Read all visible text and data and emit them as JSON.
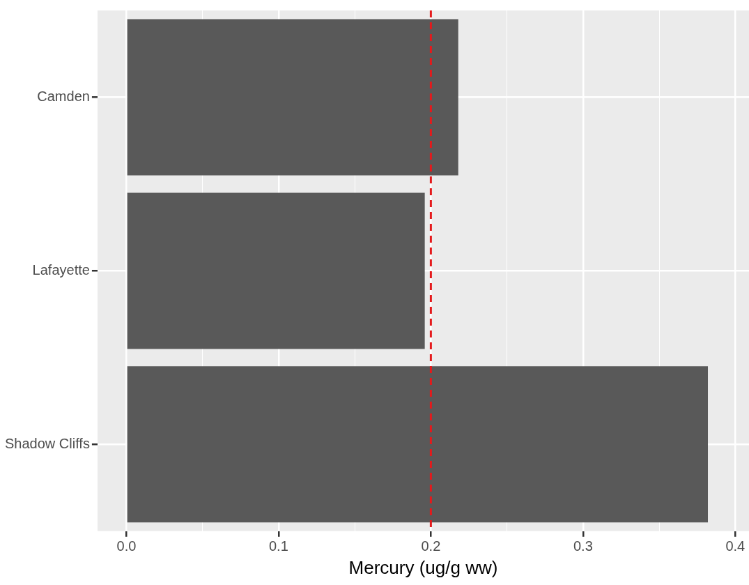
{
  "chart_data": {
    "type": "bar",
    "orientation": "horizontal",
    "xlabel": "Mercury (ug/g ww)",
    "categories": [
      "Camden",
      "Lafayette",
      "Shadow Cliffs"
    ],
    "values": [
      0.218,
      0.196,
      0.382
    ],
    "color": "#595959",
    "xlim": [
      -0.019,
      0.409
    ],
    "xticks": [
      {
        "value": 0,
        "label": "0.0"
      },
      {
        "value": 0.05,
        "label": null
      },
      {
        "value": 0.1,
        "label": "0.1"
      },
      {
        "value": 0.15,
        "label": null
      },
      {
        "value": 0.2,
        "label": "0.2"
      },
      {
        "value": 0.25,
        "label": null
      },
      {
        "value": 0.3,
        "label": "0.3"
      },
      {
        "value": 0.35,
        "label": null
      },
      {
        "value": 0.4,
        "label": "0.4"
      }
    ],
    "ref_lines": [
      {
        "axis": "x",
        "value": 0.2,
        "color": "#e41a1c",
        "line_style": "dashed"
      }
    ],
    "grid": true,
    "legend": false
  }
}
